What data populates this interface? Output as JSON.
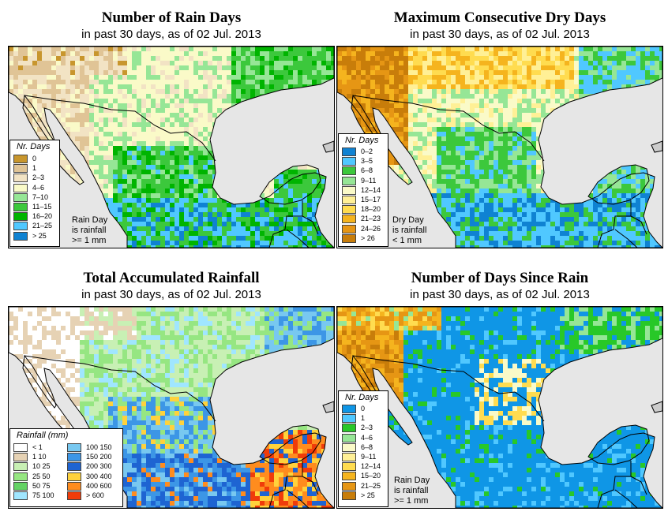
{
  "panels": {
    "p1": {
      "title": "Number of Rain Days",
      "subtitle": "in past 30 days, as of  02 Jul. 2013",
      "legend_title": "Nr. Days",
      "legend": [
        {
          "label": "0",
          "color": "#c8962d"
        },
        {
          "label": "1",
          "color": "#e0c496"
        },
        {
          "label": "2–3",
          "color": "#f2e3c4"
        },
        {
          "label": "4–6",
          "color": "#fafac8"
        },
        {
          "label": "7–10",
          "color": "#96e696"
        },
        {
          "label": "11–15",
          "color": "#3cc83c"
        },
        {
          "label": "16–20",
          "color": "#00b400"
        },
        {
          "label": "21–25",
          "color": "#50c8ff"
        },
        {
          "label": "> 25",
          "color": "#0f82d2"
        }
      ],
      "note": [
        "Rain Day",
        "is rainfall",
        ">= 1 mm"
      ]
    },
    "p2": {
      "title": "Maximum Consecutive Dry Days",
      "subtitle": "in past 30 days, as of  02 Jul. 2013",
      "legend_title": "Nr. Days",
      "legend": [
        {
          "label": "0–2",
          "color": "#0f82d2"
        },
        {
          "label": "3–5",
          "color": "#50c8ff"
        },
        {
          "label": "6–8",
          "color": "#3cc83c"
        },
        {
          "label": "9–11",
          "color": "#96e696"
        },
        {
          "label": "12–14",
          "color": "#fafac8"
        },
        {
          "label": "15–17",
          "color": "#fff096"
        },
        {
          "label": "18–20",
          "color": "#ffdc50"
        },
        {
          "label": "21–23",
          "color": "#f5b41e"
        },
        {
          "label": "24–26",
          "color": "#e69614"
        },
        {
          "label": "> 26",
          "color": "#c87d0a"
        }
      ],
      "note": [
        "Dry Day",
        "is rainfall",
        "< 1 mm"
      ]
    },
    "p3": {
      "title": "Total Accumulated Rainfall",
      "subtitle": "in past 30 days, as of  02 Jul. 2013",
      "legend_title": "Rainfall (mm)",
      "legend_left": [
        {
          "label": "< 1",
          "color": "#ffffff"
        },
        {
          "label": "1    10",
          "color": "#e6d2b4"
        },
        {
          "label": "10    25",
          "color": "#c8f0b4"
        },
        {
          "label": "25    50",
          "color": "#96e682"
        },
        {
          "label": "50    75",
          "color": "#64d264"
        },
        {
          "label": "75    100",
          "color": "#a0e6ff"
        }
      ],
      "legend_right": [
        {
          "label": "100    150",
          "color": "#78c8f0"
        },
        {
          "label": "150    200",
          "color": "#3c96e6"
        },
        {
          "label": "200    300",
          "color": "#1e64d2"
        },
        {
          "label": "300    400",
          "color": "#ffd23c"
        },
        {
          "label": "400    600",
          "color": "#ff8c1e"
        },
        {
          "label": "> 600",
          "color": "#f03c0a"
        }
      ]
    },
    "p4": {
      "title": "Number of Days Since Rain",
      "subtitle": "in past 30 days, as of  02 Jul. 2013",
      "legend_title": "Nr. Days",
      "legend": [
        {
          "label": "0",
          "color": "#0f96e6"
        },
        {
          "label": "1",
          "color": "#50c8ff"
        },
        {
          "label": "2–3",
          "color": "#28c828"
        },
        {
          "label": "4–6",
          "color": "#96e696"
        },
        {
          "label": "6–8",
          "color": "#fafac8"
        },
        {
          "label": "9–11",
          "color": "#fff096"
        },
        {
          "label": "12–14",
          "color": "#ffdc50"
        },
        {
          "label": "15–20",
          "color": "#f5b41e"
        },
        {
          "label": "21–25",
          "color": "#e69614"
        },
        {
          "label": "> 25",
          "color": "#c87d0a"
        }
      ],
      "note": [
        "Rain Day",
        "is rainfall",
        ">= 1 mm"
      ]
    }
  },
  "colors": {
    "ocean": "#e6e6e6",
    "border": "#000000"
  }
}
